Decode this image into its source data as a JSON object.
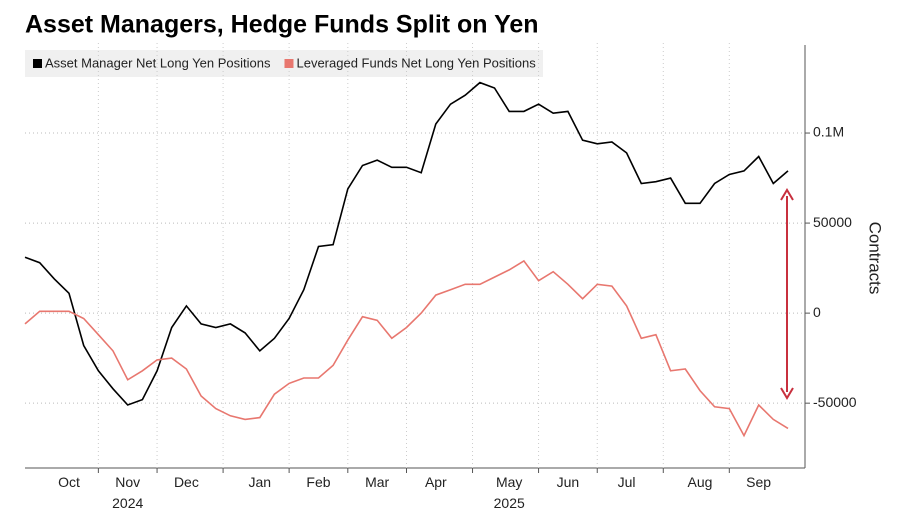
{
  "chart_data": {
    "type": "line",
    "title": "Asset Managers, Hedge Funds Split on Yen",
    "y_label": "Contracts",
    "categories": [
      null,
      null,
      null,
      "Oct",
      null,
      null,
      null,
      "Nov\n2024",
      null,
      null,
      null,
      "Dec",
      null,
      null,
      null,
      null,
      "Jan",
      null,
      null,
      null,
      "Feb",
      null,
      null,
      null,
      "Mar",
      null,
      null,
      null,
      "Apr",
      null,
      null,
      null,
      null,
      "May\n2025",
      null,
      null,
      null,
      "Jun",
      null,
      null,
      null,
      "Jul",
      null,
      null,
      null,
      null,
      "Aug",
      null,
      null,
      null,
      "Sep",
      null,
      null
    ],
    "series": [
      {
        "name": "Asset Manager Net Long Yen Positions",
        "color": "#000000",
        "values": [
          31000,
          28000,
          19000,
          11000,
          -18000,
          -32000,
          -42000,
          -51000,
          -48000,
          -32000,
          -8000,
          4000,
          -6000,
          -8000,
          -6000,
          -11000,
          -21000,
          -14000,
          -3000,
          13000,
          37000,
          38000,
          69000,
          82000,
          85000,
          81000,
          81000,
          78000,
          105000,
          116000,
          121000,
          128000,
          125000,
          112000,
          112000,
          116000,
          111000,
          112000,
          96000,
          94000,
          95000,
          89000,
          72000,
          73000,
          75000,
          61000,
          61000,
          72000,
          77000,
          79000,
          87000,
          72000,
          79000
        ]
      },
      {
        "name": "Leveraged Funds Net Long Yen Positions",
        "color": "#e8776f",
        "values": [
          -6000,
          1000,
          1000,
          1000,
          -3000,
          -12000,
          -21000,
          -37000,
          -32000,
          -26000,
          -25000,
          -31000,
          -46000,
          -53000,
          -57000,
          -59000,
          -58000,
          -45000,
          -39000,
          -36000,
          -36000,
          -29000,
          -15000,
          -2000,
          -4000,
          -14000,
          -8000,
          0,
          10000,
          13000,
          16000,
          16000,
          20000,
          24000,
          29000,
          18000,
          23000,
          16000,
          8000,
          16000,
          15000,
          4000,
          -14000,
          -12000,
          -32000,
          -31000,
          -43000,
          -52000,
          -53000,
          -68000,
          -51000,
          -59000,
          -64000
        ]
      }
    ],
    "ylim": [
      -86000,
      150000
    ],
    "yticks": [
      -50000,
      0,
      50000,
      {
        "value": 100000,
        "label": "0.1M"
      }
    ],
    "grid": true,
    "legend": "top-left"
  }
}
